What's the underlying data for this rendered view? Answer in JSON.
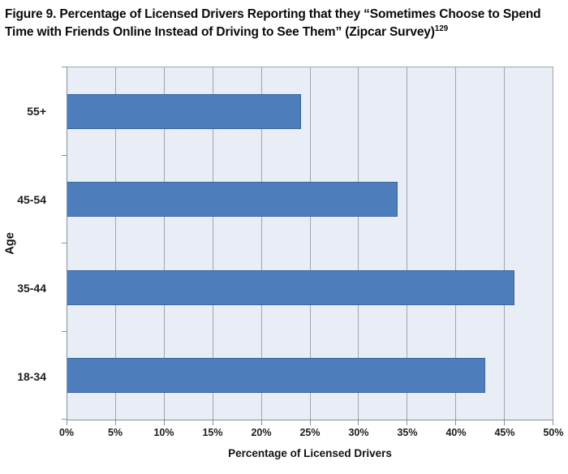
{
  "figure": {
    "title": "Figure 9. Percentage of Licensed Drivers Reporting that they “Sometimes Choose to Spend Time with Friends Online Instead of Driving to See Them” (Zipcar Survey)",
    "title_superscript": "129"
  },
  "chart_data": {
    "type": "bar",
    "orientation": "horizontal",
    "title": "",
    "categories": [
      "55+",
      "45-54",
      "35-44",
      "18-34"
    ],
    "values": [
      24,
      34,
      46,
      43
    ],
    "unit": "%",
    "xlabel": "Percentage of Licensed Drivers",
    "ylabel": "Age",
    "xlim": [
      0,
      50
    ],
    "xticks": [
      "0%",
      "5%",
      "10%",
      "15%",
      "20%",
      "25%",
      "30%",
      "35%",
      "40%",
      "45%",
      "50%"
    ],
    "grid": true,
    "legend": false,
    "colors": {
      "bar_fill": "#4d7ebb",
      "bar_border": "#38659e",
      "plot_background": "#e9edf5",
      "gridline": "#a0a6b2",
      "axis_line": "#878e99",
      "text": "#1c1c1c"
    }
  }
}
